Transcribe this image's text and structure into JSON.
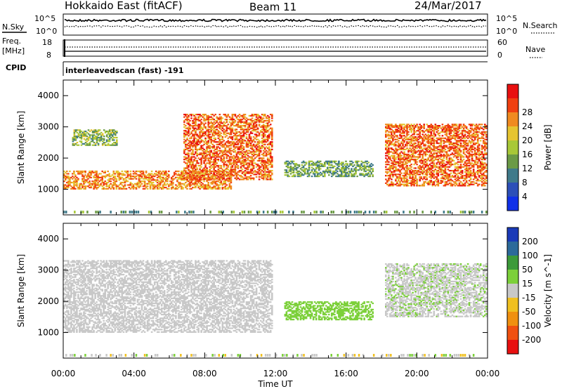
{
  "header": {
    "station": "Hokkaido East (fitACF)",
    "beam": "Beam 11",
    "date": "24/Mar/2017"
  },
  "top_panels": {
    "nsky_label": "N.Sky",
    "nsearch_label": "N.Search",
    "nsky_ticks": [
      "10^5",
      "10^0"
    ],
    "nsearch_ticks": [
      "10^5",
      "10^0"
    ],
    "freq_label_1": "Freq.",
    "freq_label_2": "[MHz]",
    "freq_ticks": [
      "18",
      "8"
    ],
    "nave_label": "Nave",
    "nave_ticks": [
      "60",
      "0"
    ],
    "cpid_label": "CPID",
    "cpid_value": "interleavedscan (fast) -191"
  },
  "chart_data": [
    {
      "type": "heatmap",
      "ylabel": "Slant Range [km]",
      "colorbar_label": "Power [dB]",
      "x": [
        "00:00",
        "04:00",
        "08:00",
        "12:00",
        "16:00",
        "20:00",
        "00:00"
      ],
      "y_ticks": [
        1000,
        2000,
        3000,
        4000
      ],
      "ylim": [
        180,
        4500
      ],
      "colorbar_ticks": [
        4,
        8,
        12,
        16,
        20,
        24,
        28
      ],
      "colorbar_colors": [
        "#1030e8",
        "#2c4fb8",
        "#3f7a8a",
        "#6b9a46",
        "#a8c838",
        "#e6c430",
        "#f08a20",
        "#f04010",
        "#e81010"
      ],
      "regions": [
        {
          "t0": 0.0,
          "t1": 9.5,
          "r0": 1000,
          "r1": 1600,
          "level": 24
        },
        {
          "t0": 6.8,
          "t1": 11.8,
          "r0": 1300,
          "r1": 3400,
          "level": 26
        },
        {
          "t0": 12.5,
          "t1": 17.5,
          "r0": 1400,
          "r1": 1900,
          "level": 12
        },
        {
          "t0": 18.2,
          "t1": 23.9,
          "r0": 1100,
          "r1": 3100,
          "level": 26
        },
        {
          "t0": 0.5,
          "t1": 3.0,
          "r0": 2400,
          "r1": 2900,
          "level": 14
        }
      ]
    },
    {
      "type": "heatmap",
      "ylabel": "Slant Range [km]",
      "colorbar_label": "Velocity [m s^-1]",
      "xlabel": "Time UT",
      "x": [
        "00:00",
        "04:00",
        "08:00",
        "12:00",
        "16:00",
        "20:00",
        "00:00"
      ],
      "y_ticks": [
        1000,
        2000,
        3000,
        4000
      ],
      "ylim": [
        180,
        4500
      ],
      "colorbar_ticks": [
        200,
        100,
        50,
        15,
        -15,
        -50,
        -100,
        -200
      ],
      "colorbar_colors": [
        "#1a3ab8",
        "#2c6a9a",
        "#3c9a3a",
        "#7cd03a",
        "#c8c8c8",
        "#f0c020",
        "#f09010",
        "#f05010",
        "#e81010"
      ],
      "regions": [
        {
          "t0": 0.0,
          "t1": 11.8,
          "r0": 1000,
          "r1": 3300,
          "level": 0
        },
        {
          "t0": 12.5,
          "t1": 17.5,
          "r0": 1400,
          "r1": 2000,
          "level": 30
        },
        {
          "t0": 18.2,
          "t1": 23.9,
          "r0": 1500,
          "r1": 3200,
          "level": 8
        }
      ]
    }
  ]
}
